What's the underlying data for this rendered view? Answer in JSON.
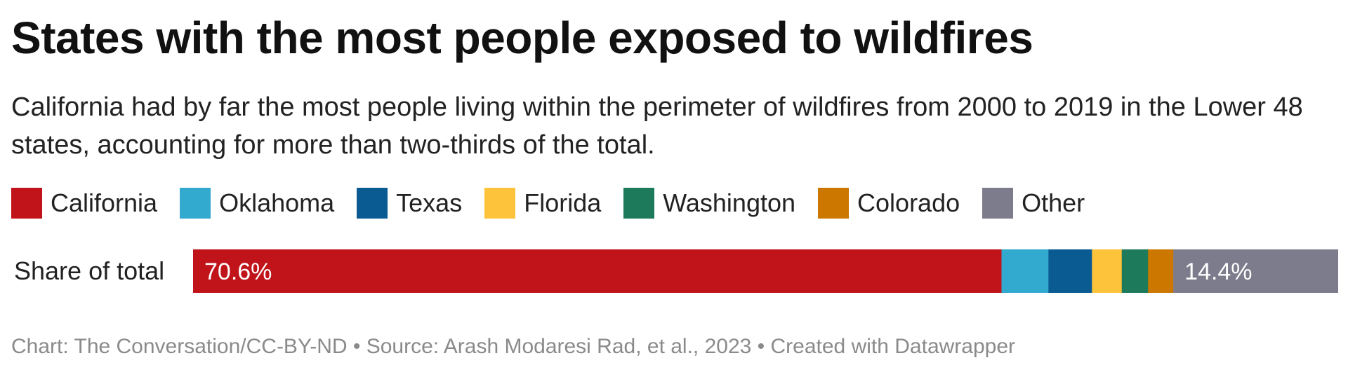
{
  "title": "States with the most people exposed to wildfires",
  "subtitle": "California had by far the most people living within the perimeter of wildfires from 2000 to 2019 in the Lower 48 states, accounting for more than two-thirds of the total.",
  "footer": "Chart: The Conversation/CC-BY-ND • Source: Arash Modaresi Rad, et al., 2023 • Created with Datawrapper",
  "chart_data": {
    "type": "bar",
    "orientation": "horizontal",
    "stacked": true,
    "categories": [
      "Share of total"
    ],
    "unit": "%",
    "xlim": [
      0,
      100
    ],
    "legend_position": "top",
    "grid": false,
    "series": [
      {
        "name": "California",
        "color": "#c0141a",
        "values": [
          70.6
        ],
        "label": "70.6%"
      },
      {
        "name": "Oklahoma",
        "color": "#32a9ce",
        "values": [
          4.1
        ]
      },
      {
        "name": "Texas",
        "color": "#0b5b93",
        "values": [
          3.8
        ]
      },
      {
        "name": "Florida",
        "color": "#fdc43b",
        "values": [
          2.6
        ]
      },
      {
        "name": "Washington",
        "color": "#1d7a5b",
        "values": [
          2.3
        ]
      },
      {
        "name": "Colorado",
        "color": "#cc7700",
        "values": [
          2.2
        ]
      },
      {
        "name": "Other",
        "color": "#7d7c8c",
        "values": [
          14.4
        ],
        "label": "14.4%"
      }
    ]
  }
}
